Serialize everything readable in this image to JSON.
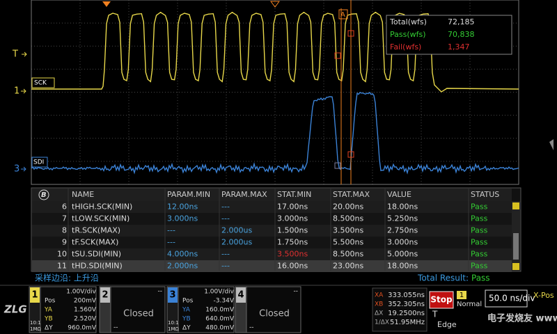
{
  "waveform": {
    "trigger_label": "T",
    "ch1_marker": "1",
    "ch3_marker": "3",
    "ch1_name": "SCK",
    "ch3_name": "SDI",
    "cursor_label": "A",
    "stats": [
      {
        "label": "Total(wfs)",
        "value": "72,185"
      },
      {
        "label": "Pass(wfs)",
        "value": "70,838"
      },
      {
        "label": "Fail(wfs)",
        "value": "1,347"
      }
    ]
  },
  "table": {
    "filter_icon": "B",
    "columns": [
      "NAME",
      "PARAM.MIN",
      "PARAM.MAX",
      "STAT.MIN",
      "STAT.MAX",
      "VALUE",
      "STATUS"
    ],
    "rows": [
      [
        "6",
        "tHIGH.SCK(MIN)",
        "12.00ns",
        "---",
        "17.00ns",
        "20.00ns",
        "18.00ns",
        "Pass"
      ],
      [
        "7",
        "tLOW.SCK(MIN)",
        "3.000ns",
        "---",
        "3.000ns",
        "8.500ns",
        "5.250ns",
        "Pass"
      ],
      [
        "8",
        "tR.SCK(MAX)",
        "---",
        "2.000us",
        "1.500ns",
        "3.500ns",
        "2.750ns",
        "Pass"
      ],
      [
        "9",
        "tF.SCK(MAX)",
        "---",
        "2.000us",
        "1.750ns",
        "5.500ns",
        "3.000ns",
        "Pass"
      ],
      [
        "10",
        "tSU.SDI(MIN)",
        "4.000ns",
        "---",
        "3.500ns",
        "8.500ns",
        "5.000ns",
        "Pass"
      ],
      [
        "11",
        "tHD.SDI(MIN)",
        "2.000ns",
        "---",
        "16.00ns",
        "23.00ns",
        "18.00ns",
        "Pass"
      ]
    ]
  },
  "status_bar": {
    "edge": "采样边沿: 上升沿",
    "total_result_label": "Total Result:",
    "total_result": "Pass"
  },
  "logo": "ZLG",
  "channels": [
    {
      "number": "1",
      "scale": "1.00V/div",
      "pos_label": "Pos",
      "pos": "200mV",
      "ya_label": "YA",
      "ya": "1.560V",
      "yb_label": "YB",
      "yb": "2.520V",
      "dy_label": "ΔY",
      "dy": "960.0mV",
      "probe": "10:1",
      "impedance": "1MΩ"
    },
    {
      "number": "2",
      "state": "Closed",
      "placeholder": "--"
    },
    {
      "number": "3",
      "scale": "1.00V/div",
      "pos_label": "Pos",
      "pos": "-3.34V",
      "ya_label": "YA",
      "ya": "160.0mV",
      "yb_label": "YB",
      "yb": "640.0mV",
      "dy_label": "ΔY",
      "dy": "480.0mV",
      "probe": "10:1",
      "impedance": "1MΩ"
    },
    {
      "number": "4",
      "state": "Closed",
      "placeholder": "--"
    }
  ],
  "cursors": [
    {
      "label": "XA",
      "value": "333.055ns"
    },
    {
      "label": "XB",
      "value": "352.305ns"
    },
    {
      "label": "ΔX",
      "value": "19.2500ns"
    },
    {
      "label": "1/ΔX",
      "value": "51.95MHz"
    }
  ],
  "acquisition": {
    "run_state": "Stop",
    "trigger_source": "1",
    "trigger_mode": "Normal",
    "trigger_label": "T",
    "trigger_type": "Edge",
    "timebase": "50.0 ns/div",
    "xpos_label": "X-Pos"
  },
  "watermark": "电子发烧友 www.elecfans.com"
}
